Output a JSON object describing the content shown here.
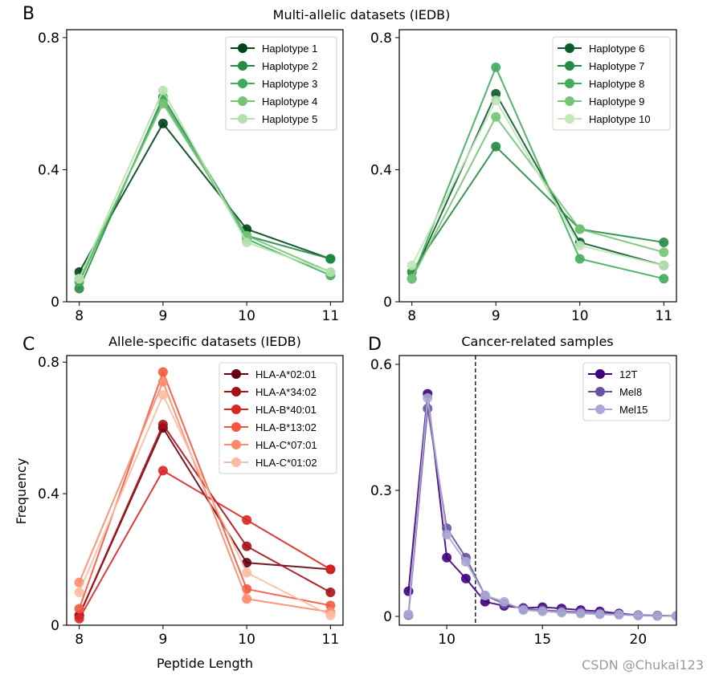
{
  "suptitle": "Multi-allelic datasets (IEDB)",
  "panel_labels": [
    "B",
    "C",
    "D"
  ],
  "watermark": "CSDN @Chukai123",
  "chart_data": [
    {
      "type": "line",
      "panel": "B-left",
      "title": "",
      "xlabel": "",
      "ylabel": "",
      "x": [
        8,
        9,
        10,
        11
      ],
      "xlim": [
        7.85,
        11.15
      ],
      "ylim": [
        0,
        0.824
      ],
      "xticks": [
        "8",
        "9",
        "10",
        "11"
      ],
      "yticks": [
        0,
        0.4,
        0.8
      ],
      "ytick_labels": [
        "0",
        "0.4",
        "0.8"
      ],
      "legend": "top-right",
      "grid": false,
      "series": [
        {
          "name": "Haplotype 1",
          "color": "#00441b",
          "values": [
            0.09,
            0.54,
            0.22,
            0.13
          ]
        },
        {
          "name": "Haplotype 2",
          "color": "#238b45",
          "values": [
            0.04,
            0.62,
            0.2,
            0.13
          ]
        },
        {
          "name": "Haplotype 3",
          "color": "#41ab5d",
          "values": [
            0.06,
            0.61,
            0.19,
            0.08
          ]
        },
        {
          "name": "Haplotype 4",
          "color": "#74c476",
          "values": [
            0.07,
            0.6,
            0.2,
            0.09
          ]
        },
        {
          "name": "Haplotype 5",
          "color": "#b5e1ae",
          "values": [
            0.07,
            0.64,
            0.18,
            0.09
          ]
        }
      ]
    },
    {
      "type": "line",
      "panel": "B-right",
      "title": "",
      "xlabel": "",
      "ylabel": "",
      "x": [
        8,
        9,
        10,
        11
      ],
      "xlim": [
        7.85,
        11.15
      ],
      "ylim": [
        0,
        0.824
      ],
      "xticks": [
        "8",
        "9",
        "10",
        "11"
      ],
      "yticks": [
        0,
        0.4,
        0.8
      ],
      "ytick_labels": [
        "0",
        "0.4",
        "0.8"
      ],
      "legend": "top-right",
      "grid": false,
      "series": [
        {
          "name": "Haplotype 6",
          "color": "#0b5a2a",
          "values": [
            0.07,
            0.63,
            0.18,
            0.11
          ]
        },
        {
          "name": "Haplotype 7",
          "color": "#238b45",
          "values": [
            0.09,
            0.47,
            0.22,
            0.18
          ]
        },
        {
          "name": "Haplotype 8",
          "color": "#41ab5d",
          "values": [
            0.07,
            0.71,
            0.13,
            0.07
          ]
        },
        {
          "name": "Haplotype 9",
          "color": "#74c476",
          "values": [
            0.07,
            0.56,
            0.22,
            0.15
          ]
        },
        {
          "name": "Haplotype 10",
          "color": "#c0e6b9",
          "values": [
            0.11,
            0.61,
            0.17,
            0.11
          ]
        }
      ]
    },
    {
      "type": "line",
      "panel": "C",
      "title": "Allele-specific datasets (IEDB)",
      "xlabel": "Peptide Length",
      "ylabel": "Frequency",
      "x": [
        8,
        9,
        10,
        11
      ],
      "xlim": [
        7.85,
        11.15
      ],
      "ylim": [
        0,
        0.82
      ],
      "xticks": [
        "8",
        "9",
        "10",
        "11"
      ],
      "yticks": [
        0,
        0.4,
        0.8
      ],
      "ytick_labels": [
        "0",
        "0.4",
        "0.8"
      ],
      "legend": "top-right",
      "grid": false,
      "series": [
        {
          "name": "HLA-A*02:01",
          "color": "#67000d",
          "values": [
            0.03,
            0.6,
            0.19,
            0.17
          ]
        },
        {
          "name": "HLA-A*34:02",
          "color": "#a50f15",
          "values": [
            0.03,
            0.61,
            0.24,
            0.1
          ]
        },
        {
          "name": "HLA-B*40:01",
          "color": "#d92523",
          "values": [
            0.02,
            0.47,
            0.32,
            0.17
          ]
        },
        {
          "name": "HLA-B*13:02",
          "color": "#f4573f",
          "values": [
            0.05,
            0.77,
            0.11,
            0.06
          ]
        },
        {
          "name": "HLA-C*07:01",
          "color": "#fc8a6a",
          "values": [
            0.13,
            0.74,
            0.08,
            0.04
          ]
        },
        {
          "name": "HLA-C*01:02",
          "color": "#fcbba1",
          "values": [
            0.1,
            0.7,
            0.16,
            0.03
          ]
        }
      ]
    },
    {
      "type": "line",
      "panel": "D",
      "title": "Cancer-related samples",
      "xlabel": "",
      "ylabel": "",
      "x": [
        8,
        9,
        10,
        11,
        12,
        13,
        14,
        15,
        16,
        17,
        18,
        19,
        20,
        21,
        22
      ],
      "xlim": [
        7.52,
        22.0
      ],
      "ylim": [
        -0.021,
        0.621
      ],
      "xticks": [
        "10",
        "15",
        "20"
      ],
      "xtick_values": [
        10,
        15,
        20
      ],
      "yticks": [
        0,
        0.3,
        0.6
      ],
      "ytick_labels": [
        "0",
        "0.3",
        "0.6"
      ],
      "vline": {
        "x": 11.5,
        "style": "dashed",
        "color": "#000000"
      },
      "legend": "top-right",
      "grid": false,
      "series": [
        {
          "name": "12T",
          "color": "#3f007d",
          "values": [
            0.06,
            0.53,
            0.14,
            0.09,
            0.035,
            0.025,
            0.02,
            0.022,
            0.019,
            0.015,
            0.012,
            0.007,
            0.003,
            0.002,
            0.001
          ]
        },
        {
          "name": "Mel8",
          "color": "#6a51a3",
          "values": [
            0.003,
            0.495,
            0.21,
            0.14,
            0.05,
            0.03,
            0.018,
            0.015,
            0.012,
            0.01,
            0.007,
            0.005,
            0.003,
            0.002,
            0.001
          ]
        },
        {
          "name": "Mel15",
          "color": "#aaa8d4",
          "values": [
            0.005,
            0.52,
            0.195,
            0.13,
            0.05,
            0.035,
            0.015,
            0.012,
            0.009,
            0.007,
            0.005,
            0.004,
            0.002,
            0.001,
            0.001
          ]
        }
      ]
    }
  ]
}
